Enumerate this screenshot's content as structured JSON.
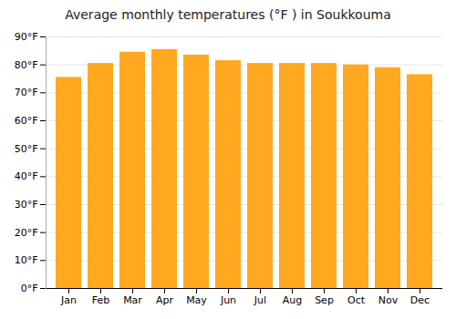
{
  "chart_data": {
    "type": "bar",
    "title": "Average monthly temperatures (°F ) in Soukkouma",
    "categories": [
      "Jan",
      "Feb",
      "Mar",
      "Apr",
      "May",
      "Jun",
      "Jul",
      "Aug",
      "Sep",
      "Oct",
      "Nov",
      "Dec"
    ],
    "values": [
      75.5,
      80.5,
      84.5,
      85.5,
      83.5,
      81.5,
      80.5,
      80.5,
      80.5,
      80.0,
      79.0,
      76.5
    ],
    "color": "#FFA820",
    "ylim": [
      0,
      90
    ],
    "yticks": [
      {
        "value": 0,
        "label": "0°F"
      },
      {
        "value": 10,
        "label": "10°F"
      },
      {
        "value": 20,
        "label": "20°F"
      },
      {
        "value": 30,
        "label": "30°F"
      },
      {
        "value": 40,
        "label": "40°F"
      },
      {
        "value": 50,
        "label": "50°F"
      },
      {
        "value": 60,
        "label": "60°F"
      },
      {
        "value": 70,
        "label": "70°F"
      },
      {
        "value": 80,
        "label": "80°F"
      },
      {
        "value": 90,
        "label": "90°F"
      }
    ],
    "grid": true
  }
}
